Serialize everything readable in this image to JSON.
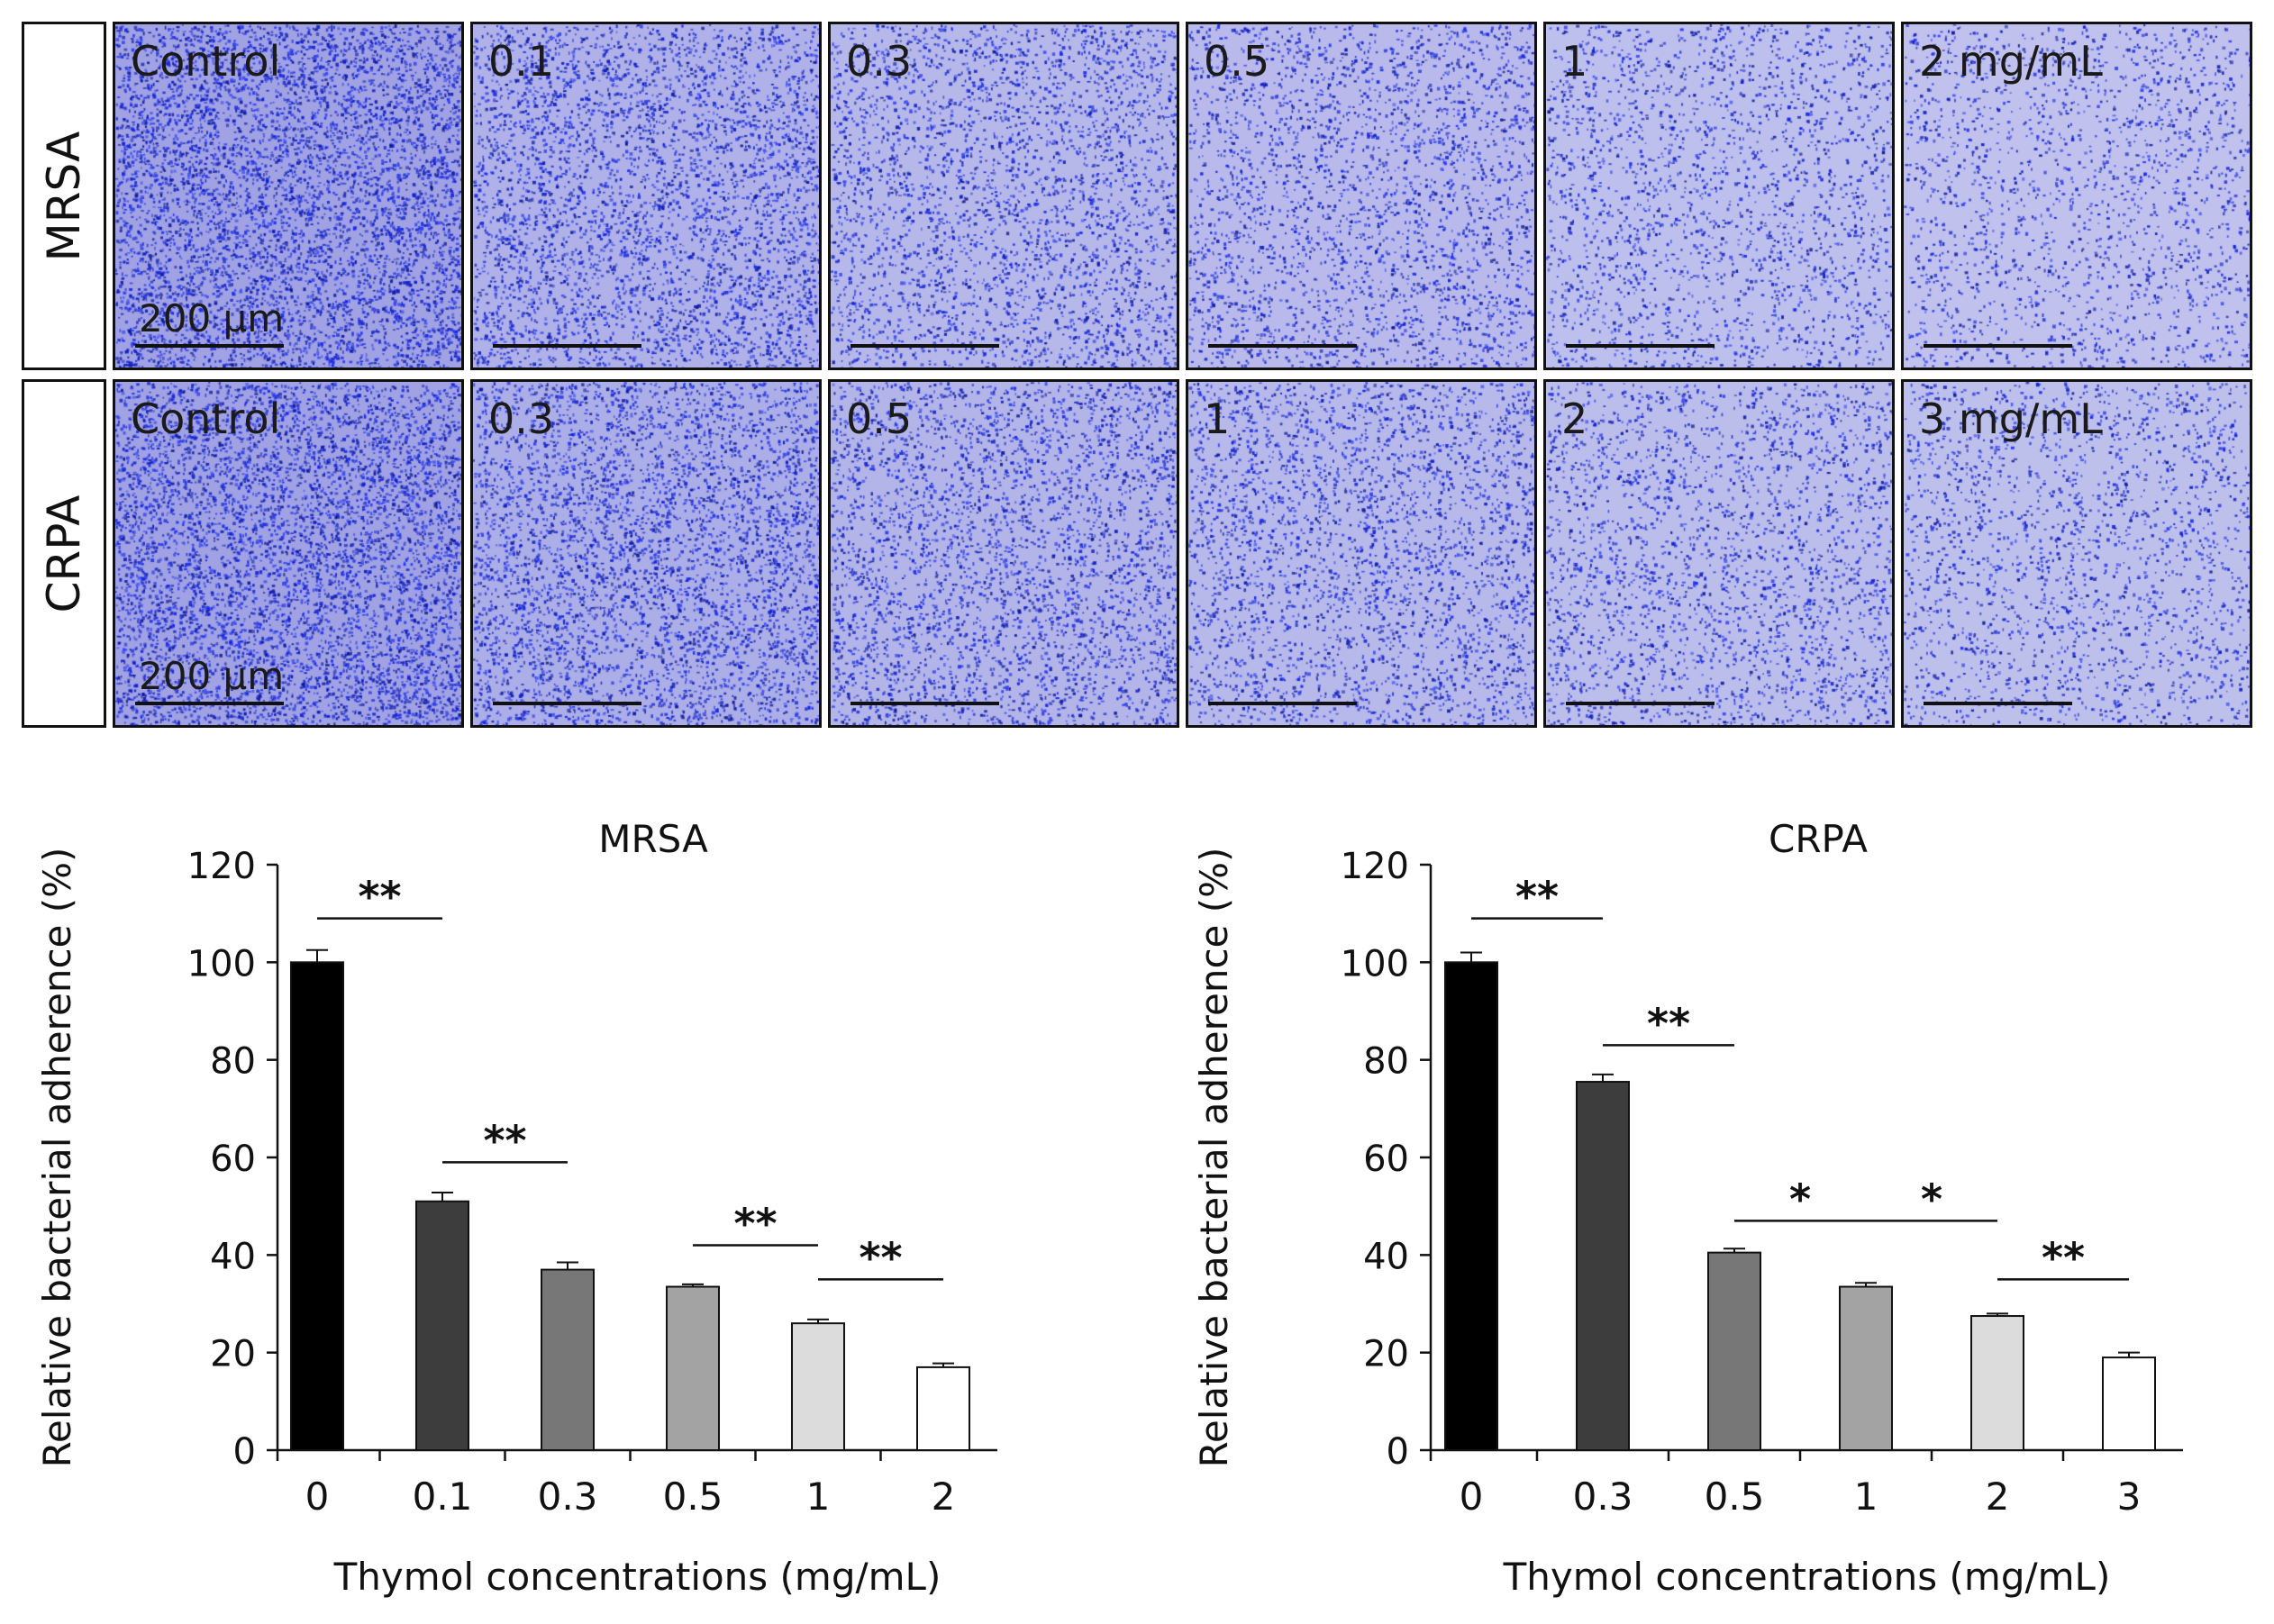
{
  "micrographs": {
    "scale_label": "200 μm",
    "rows": [
      {
        "strain": "MRSA",
        "panels": [
          {
            "label": "Control",
            "density": 1.0
          },
          {
            "label": "0.1",
            "density": 0.62
          },
          {
            "label": "0.3",
            "density": 0.45
          },
          {
            "label": "0.5",
            "density": 0.38
          },
          {
            "label": "1",
            "density": 0.26
          },
          {
            "label": "2 mg/mL",
            "density": 0.2
          }
        ]
      },
      {
        "strain": "CRPA",
        "panels": [
          {
            "label": "Control",
            "density": 1.0
          },
          {
            "label": "0.3",
            "density": 0.7
          },
          {
            "label": "0.5",
            "density": 0.52
          },
          {
            "label": "1",
            "density": 0.42
          },
          {
            "label": "2",
            "density": 0.32
          },
          {
            "label": "3 mg/mL",
            "density": 0.24
          }
        ]
      }
    ]
  },
  "chart_data": [
    {
      "type": "bar",
      "title": "MRSA",
      "xlabel": "Thymol concentrations (mg/mL)",
      "ylabel": "Relative bacterial adherence (%)",
      "ylim": [
        0,
        120
      ],
      "yticks": [
        "0",
        "20",
        "40",
        "60",
        "80",
        "100",
        "120"
      ],
      "categories": [
        "0",
        "0.1",
        "0.3",
        "0.5",
        "1",
        "2"
      ],
      "values": [
        100,
        51,
        37,
        33.5,
        26,
        17
      ],
      "errors": [
        2.5,
        1.8,
        1.5,
        0.5,
        0.8,
        0.8
      ],
      "bar_colors": [
        "#000000",
        "#3d3d3d",
        "#777777",
        "#a3a3a3",
        "#dcdcdc",
        "#ffffff"
      ],
      "significance": [
        {
          "from": 0,
          "to": 1,
          "label": "**",
          "level": 109
        },
        {
          "from": 1,
          "to": 2,
          "label": "**",
          "level": 59
        },
        {
          "from": 3,
          "to": 4,
          "label": "**",
          "level": 42
        },
        {
          "from": 4,
          "to": 5,
          "label": "**",
          "level": 35
        }
      ]
    },
    {
      "type": "bar",
      "title": "CRPA",
      "xlabel": "Thymol concentrations (mg/mL)",
      "ylabel": "Relative bacterial adherence (%)",
      "ylim": [
        0,
        120
      ],
      "yticks": [
        "0",
        "20",
        "40",
        "60",
        "80",
        "100",
        "120"
      ],
      "categories": [
        "0",
        "0.3",
        "0.5",
        "1",
        "2",
        "3"
      ],
      "values": [
        100,
        75.5,
        40.5,
        33.5,
        27.5,
        19
      ],
      "errors": [
        2,
        1.5,
        0.8,
        0.8,
        0.5,
        1
      ],
      "bar_colors": [
        "#000000",
        "#3d3d3d",
        "#777777",
        "#a3a3a3",
        "#dcdcdc",
        "#ffffff"
      ],
      "significance": [
        {
          "from": 0,
          "to": 1,
          "label": "**",
          "level": 109
        },
        {
          "from": 1,
          "to": 2,
          "label": "**",
          "level": 83
        },
        {
          "from": 2,
          "to": 3,
          "label": "*",
          "level": 47
        },
        {
          "from": 3,
          "to": 4,
          "label": "*",
          "level": 47
        },
        {
          "from": 4,
          "to": 5,
          "label": "**",
          "level": 35
        }
      ]
    }
  ]
}
